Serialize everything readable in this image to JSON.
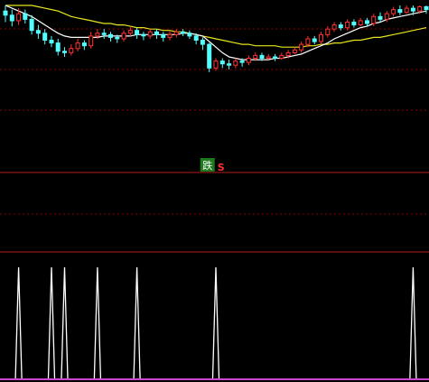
{
  "colors": {
    "background": "#000000",
    "up_candle": "#ff3232",
    "down_candle": "#54ffff",
    "ma_short": "#ffffff",
    "ma_long": "#e6e61e",
    "grid": "#8b0000",
    "divider": "#b41e1e",
    "spike": "#ffffff",
    "bottom_line": "#cc44cc",
    "badge_bg": "#1e7a1e",
    "badge_text": "#ffffff",
    "s_marker": "#ff3232"
  },
  "markers": {
    "badge_text": "跌",
    "s_text": "S"
  },
  "chart_data": [
    {
      "type": "candlestick",
      "panel": "price",
      "title": "",
      "xlabel": "",
      "ylabel": "",
      "grid": true,
      "ylim": [
        0,
        100
      ],
      "series": [
        {
          "kind": "ohlc",
          "values": [
            [
              96,
              93,
              100,
              88
            ],
            [
              93,
              89,
              97,
              85
            ],
            [
              89,
              94,
              98,
              86
            ],
            [
              94,
              90,
              97,
              87
            ],
            [
              90,
              82,
              93,
              79
            ],
            [
              82,
              80,
              86,
              76
            ],
            [
              80,
              75,
              83,
              72
            ],
            [
              75,
              73,
              78,
              70
            ],
            [
              73,
              67,
              76,
              64
            ],
            [
              67,
              66,
              70,
              63
            ],
            [
              66,
              69,
              72,
              64
            ],
            [
              69,
              73,
              76,
              67
            ],
            [
              73,
              71,
              75,
              68
            ],
            [
              71,
              78,
              81,
              69
            ],
            [
              78,
              80,
              83,
              76
            ],
            [
              80,
              79,
              83,
              76
            ],
            [
              79,
              77,
              81,
              74
            ],
            [
              77,
              76,
              79,
              73
            ],
            [
              76,
              80,
              82,
              74
            ],
            [
              80,
              82,
              85,
              78
            ],
            [
              82,
              79,
              84,
              76
            ],
            [
              79,
              78,
              81,
              75
            ],
            [
              78,
              81,
              83,
              76
            ],
            [
              81,
              79,
              83,
              76
            ],
            [
              79,
              77,
              81,
              74
            ],
            [
              77,
              79,
              82,
              75
            ],
            [
              79,
              81,
              83,
              77
            ],
            [
              81,
              80,
              83,
              78
            ],
            [
              80,
              78,
              82,
              76
            ],
            [
              78,
              75,
              80,
              72
            ],
            [
              75,
              72,
              77,
              68
            ],
            [
              72,
              55,
              73,
              52
            ],
            [
              55,
              60,
              62,
              53
            ],
            [
              60,
              58,
              62,
              55
            ],
            [
              58,
              57,
              61,
              54
            ],
            [
              57,
              60,
              62,
              55
            ],
            [
              60,
              59,
              62,
              56
            ],
            [
              59,
              62,
              64,
              57
            ],
            [
              62,
              64,
              66,
              60
            ],
            [
              64,
              62,
              66,
              60
            ],
            [
              62,
              63,
              65,
              61
            ],
            [
              63,
              62,
              65,
              60
            ],
            [
              62,
              64,
              66,
              61
            ],
            [
              64,
              66,
              68,
              62
            ],
            [
              66,
              68,
              70,
              65
            ],
            [
              68,
              72,
              74,
              66
            ],
            [
              72,
              76,
              78,
              70
            ],
            [
              76,
              74,
              78,
              72
            ],
            [
              74,
              79,
              81,
              72
            ],
            [
              79,
              83,
              85,
              77
            ],
            [
              83,
              86,
              88,
              81
            ],
            [
              86,
              84,
              88,
              82
            ],
            [
              84,
              88,
              90,
              82
            ],
            [
              88,
              86,
              90,
              84
            ],
            [
              86,
              89,
              91,
              85
            ],
            [
              89,
              87,
              91,
              85
            ],
            [
              87,
              92,
              94,
              85
            ],
            [
              92,
              90,
              95,
              88
            ],
            [
              90,
              94,
              96,
              88
            ],
            [
              94,
              97,
              99,
              92
            ],
            [
              97,
              95,
              100,
              93
            ],
            [
              95,
              98,
              100,
              94
            ],
            [
              98,
              96,
              100,
              93
            ],
            [
              96,
              99,
              100,
              94
            ],
            [
              99,
              97,
              100,
              94
            ]
          ]
        },
        {
          "name": "",
          "kind": "ma_short",
          "values": [
            100,
            98,
            96,
            94,
            92,
            89,
            86,
            83,
            80,
            78,
            77,
            77,
            77,
            77,
            77,
            78,
            78,
            78,
            78,
            78,
            79,
            79,
            79,
            79,
            79,
            79,
            79,
            80,
            80,
            79,
            78,
            74,
            70,
            66,
            63,
            62,
            61,
            61,
            61,
            61,
            61,
            62,
            62,
            63,
            64,
            65,
            67,
            69,
            71,
            73,
            76,
            78,
            80,
            82,
            84,
            85,
            87,
            88,
            90,
            91,
            92,
            93,
            94,
            95,
            96
          ]
        },
        {
          "name": "",
          "kind": "ma_long",
          "values": [
            100,
            100,
            100,
            100,
            100,
            99,
            98,
            97,
            96,
            94,
            92,
            91,
            90,
            89,
            88,
            87,
            87,
            86,
            86,
            85,
            84,
            84,
            83,
            83,
            82,
            82,
            81,
            81,
            80,
            79,
            78,
            77,
            76,
            75,
            74,
            73,
            72,
            72,
            71,
            71,
            71,
            71,
            70,
            70,
            70,
            70,
            71,
            71,
            72,
            72,
            73,
            73,
            74,
            75,
            75,
            76,
            77,
            77,
            78,
            79,
            80,
            81,
            82,
            83,
            84
          ]
        }
      ]
    },
    {
      "type": "spike",
      "panel": "indicator",
      "title": "",
      "xlabel": "",
      "ylabel": "",
      "grid": false,
      "ylim": [
        0,
        1
      ],
      "x": [
        2,
        7,
        9,
        14,
        20,
        32,
        62
      ],
      "values": [
        1,
        1,
        1,
        1,
        1,
        1,
        1
      ]
    }
  ]
}
